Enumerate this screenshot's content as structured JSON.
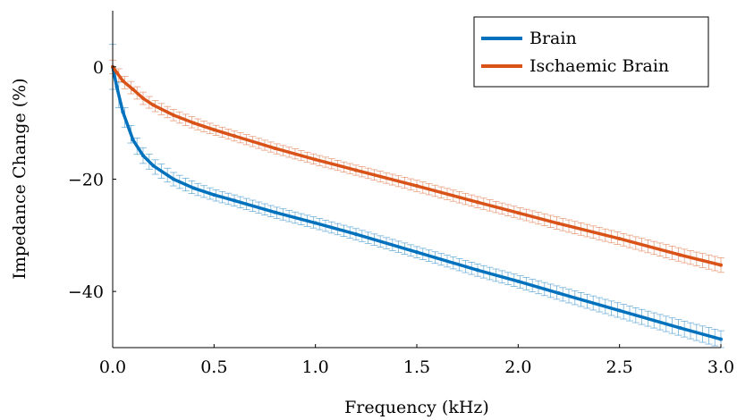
{
  "chart_data": {
    "type": "line",
    "title": "",
    "xlabel": "Frequency (kHz)",
    "ylabel": "Impedance Change (%)",
    "xlim": [
      0,
      3.0
    ],
    "ylim": [
      -50,
      10
    ],
    "xticks": [
      0.0,
      0.5,
      1.0,
      1.5,
      2.0,
      2.5,
      3.0
    ],
    "xtick_labels": [
      "0.0",
      "0.5",
      "1.0",
      "1.5",
      "2.0",
      "2.5",
      "3.0"
    ],
    "yticks": [
      -40,
      -20,
      0
    ],
    "ytick_labels": [
      "−40",
      "−20",
      "0"
    ],
    "grid": false,
    "legend_position": "top-right",
    "series": [
      {
        "name": "Brain",
        "color": "#0072BD",
        "x": [
          0.0,
          0.02,
          0.05,
          0.1,
          0.15,
          0.2,
          0.3,
          0.4,
          0.5,
          0.6,
          0.8,
          1.0,
          1.2,
          1.5,
          1.8,
          2.0,
          2.2,
          2.5,
          2.8,
          3.0
        ],
        "y": [
          0.0,
          -3.5,
          -8.0,
          -13.0,
          -15.8,
          -17.6,
          -20.0,
          -21.6,
          -22.8,
          -23.8,
          -25.9,
          -27.8,
          -29.8,
          -33.0,
          -36.2,
          -38.2,
          -40.3,
          -43.4,
          -46.5,
          -48.5
        ],
        "error": [
          4.0,
          2.5,
          1.8,
          1.5,
          1.4,
          1.3,
          1.2,
          1.1,
          1.0,
          1.0,
          1.0,
          1.0,
          1.0,
          1.0,
          1.1,
          1.1,
          1.2,
          1.3,
          1.4,
          1.5
        ]
      },
      {
        "name": "Ischaemic Brain",
        "color": "#D95319",
        "x": [
          0.0,
          0.02,
          0.05,
          0.1,
          0.15,
          0.2,
          0.3,
          0.4,
          0.5,
          0.6,
          0.8,
          1.0,
          1.2,
          1.5,
          1.8,
          2.0,
          2.2,
          2.5,
          2.8,
          3.0
        ],
        "y": [
          0.0,
          -1.0,
          -2.5,
          -4.0,
          -5.6,
          -6.8,
          -8.6,
          -10.0,
          -11.2,
          -12.3,
          -14.5,
          -16.5,
          -18.4,
          -21.2,
          -24.1,
          -26.0,
          -27.9,
          -30.6,
          -33.5,
          -35.3
        ],
        "error": [
          1.2,
          1.2,
          1.1,
          1.1,
          1.1,
          1.0,
          1.0,
          1.0,
          0.9,
          0.9,
          0.9,
          0.9,
          0.9,
          1.0,
          1.0,
          1.0,
          1.1,
          1.1,
          1.2,
          1.3
        ]
      }
    ]
  }
}
